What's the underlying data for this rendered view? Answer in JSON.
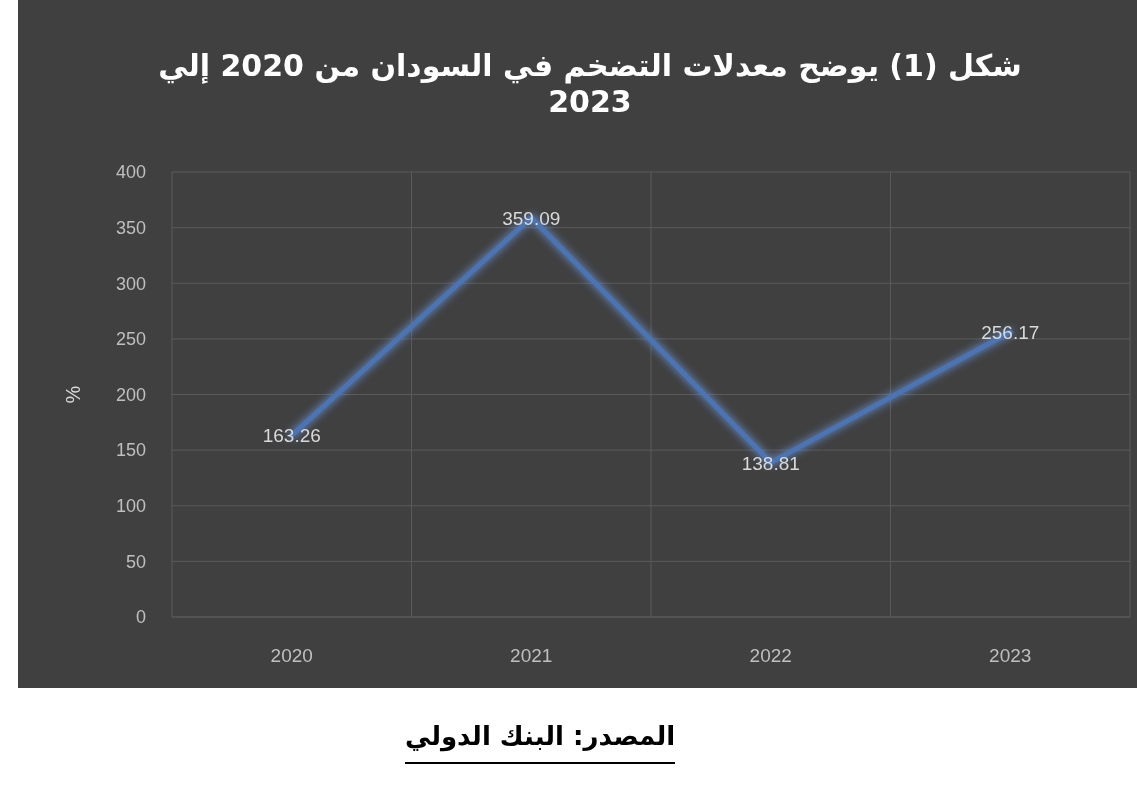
{
  "chart_data": {
    "type": "line",
    "title": "شكل (1) يوضح معدلات التضخم في السودان من 2020 إلي 2023",
    "ylabel": "%",
    "categories": [
      "2020",
      "2021",
      "2022",
      "2023"
    ],
    "series": [
      {
        "color": "#4a74b4",
        "values": [
          163.26,
          359.09,
          138.81,
          256.17
        ]
      }
    ],
    "ylim": [
      0,
      400
    ],
    "yticks": [
      0,
      50,
      100,
      150,
      200,
      250,
      300,
      350,
      400
    ],
    "grid": true,
    "data_labels": true,
    "marker": "none",
    "line_style": "solid",
    "annotations": [
      "المصدر: البنك الدولي"
    ]
  }
}
